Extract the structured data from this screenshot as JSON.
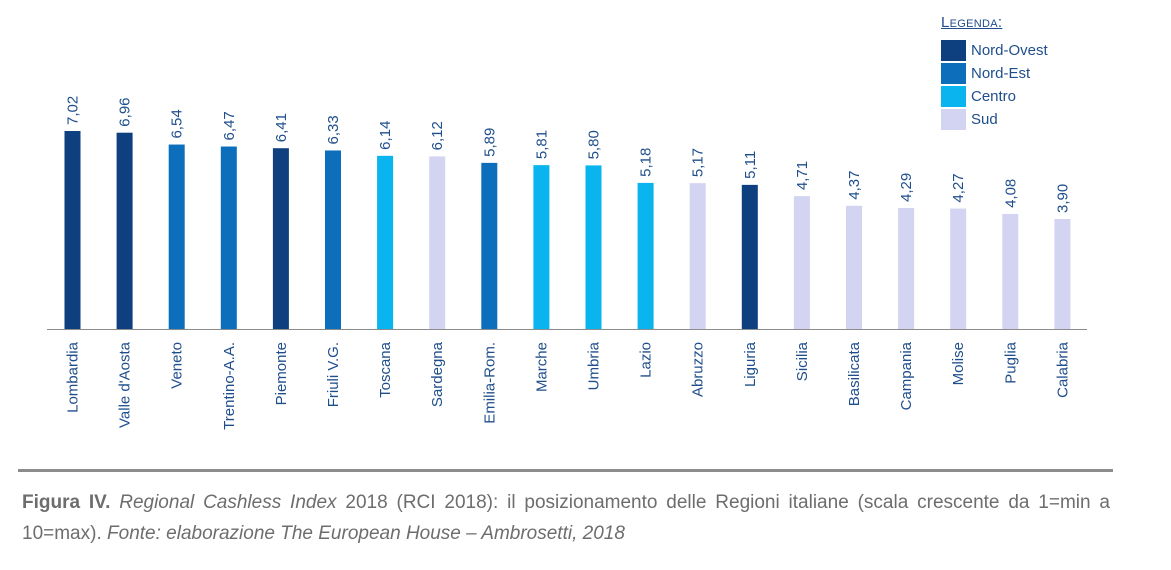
{
  "chart_data": {
    "type": "bar",
    "categories": [
      "Lombardia",
      "Valle d'Aosta",
      "Veneto",
      "Trentino-A.A.",
      "Piemonte",
      "Friuli V.G.",
      "Toscana",
      "Sardegna",
      "Emilia-Rom.",
      "Marche",
      "Umbria",
      "Lazio",
      "Abruzzo",
      "Liguria",
      "Sicilia",
      "Basilicata",
      "Campania",
      "Molise",
      "Puglia",
      "Calabria"
    ],
    "values": [
      7.02,
      6.96,
      6.54,
      6.47,
      6.41,
      6.33,
      6.14,
      6.12,
      5.89,
      5.81,
      5.8,
      5.18,
      5.17,
      5.11,
      4.71,
      4.37,
      4.29,
      4.27,
      4.08,
      3.9
    ],
    "value_labels": [
      "7,02",
      "6,96",
      "6,54",
      "6,47",
      "6,41",
      "6,33",
      "6,14",
      "6,12",
      "5,89",
      "5,81",
      "5,80",
      "5,18",
      "5,17",
      "5,11",
      "4,71",
      "4,37",
      "4,29",
      "4,27",
      "4,08",
      "3,90"
    ],
    "groups": [
      "Nord-Ovest",
      "Nord-Ovest",
      "Nord-Est",
      "Nord-Est",
      "Nord-Ovest",
      "Nord-Est",
      "Centro",
      "Sud",
      "Nord-Est",
      "Centro",
      "Centro",
      "Centro",
      "Sud",
      "Nord-Ovest",
      "Sud",
      "Sud",
      "Sud",
      "Sud",
      "Sud",
      "Sud"
    ],
    "ylim": [
      0,
      7.5
    ],
    "grid": false,
    "title": "",
    "xlabel": "",
    "ylabel": ""
  },
  "legend": {
    "title": "Legenda:",
    "items": [
      {
        "name": "Nord-Ovest",
        "color": "#0e3f7e"
      },
      {
        "name": "Nord-Est",
        "color": "#0d6ebc"
      },
      {
        "name": "Centro",
        "color": "#0ab4ee"
      },
      {
        "name": "Sud",
        "color": "#d3d3f2"
      }
    ]
  },
  "caption": {
    "figure": "Figura IV.",
    "italic_title": "Regional Cashless Index",
    "text": " 2018 (RCI 2018): il posizionamento delle Regioni italiane (scala crescente da 1=min a 10=max). ",
    "source": "Fonte: elaborazione The European House – Ambrosetti, 2018"
  },
  "colors": {
    "label_text": "#1f4e8c",
    "axis": "#8c8c8c"
  }
}
